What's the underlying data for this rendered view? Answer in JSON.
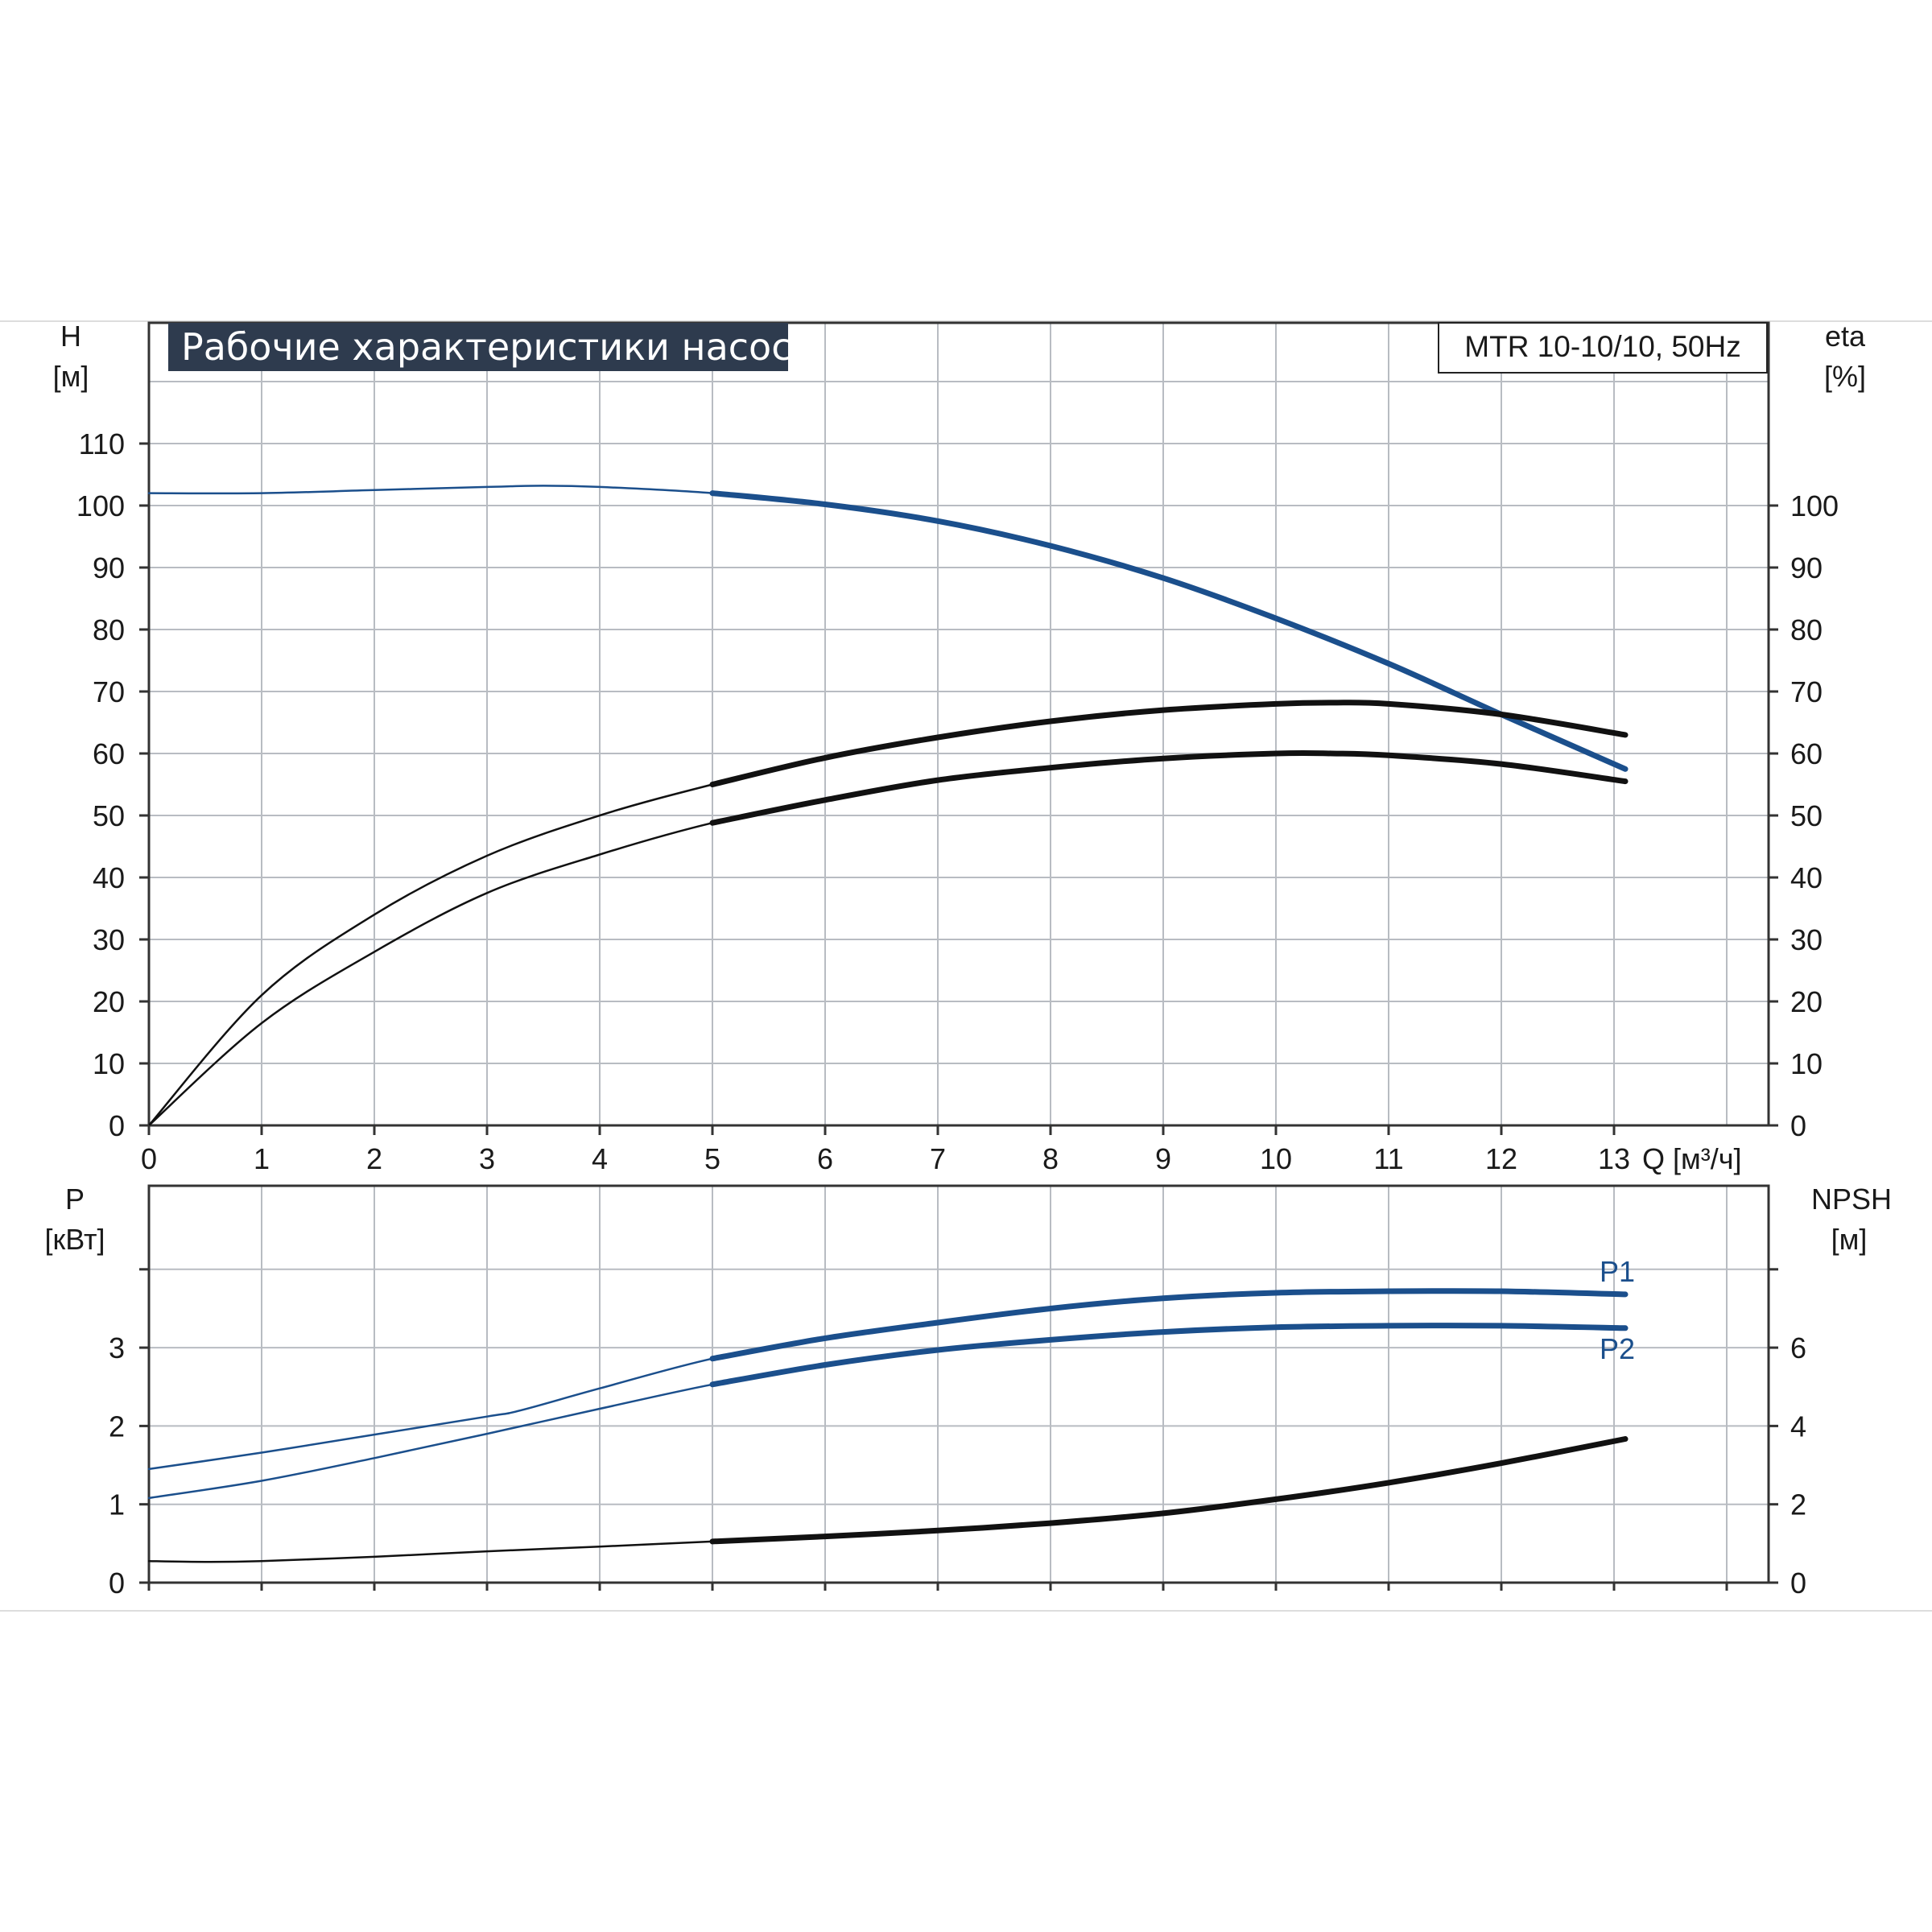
{
  "colors": {
    "blue": "#1b4f8c",
    "black": "#111111",
    "grid": "#b8bcc2",
    "title_bg": "#2e3b4e",
    "frame_line": "#dddddd"
  },
  "chart_data": [
    {
      "type": "line",
      "title": "Рабочие характеристики насоса",
      "model": "MTR 10-10/10, 50Hz",
      "xlabel": "Q [м³/ч]",
      "xlim": [
        0,
        14
      ],
      "xticks": [
        "0",
        "1",
        "2",
        "3",
        "4",
        "5",
        "6",
        "7",
        "8",
        "9",
        "10",
        "11",
        "12",
        "13"
      ],
      "ylabel_left": {
        "name": "H",
        "unit": "[м]"
      },
      "ylabel_right": {
        "name": "eta",
        "unit": "[%]"
      },
      "ylim": [
        0,
        120
      ],
      "yticks_left": [
        "0",
        "10",
        "20",
        "30",
        "40",
        "50",
        "60",
        "70",
        "80",
        "90",
        "100",
        "110"
      ],
      "yticks_right": [
        "0",
        "10",
        "20",
        "30",
        "40",
        "50",
        "60",
        "70",
        "80",
        "90",
        "100"
      ],
      "grid": true,
      "series": [
        {
          "color": "blue",
          "axis": "left",
          "x": [
            0,
            1,
            2,
            3,
            3.5,
            4,
            5,
            6,
            7,
            8,
            9,
            10,
            11,
            12,
            13.1
          ],
          "values": [
            102,
            102,
            102.5,
            103,
            103.2,
            103,
            102,
            100.2,
            97.5,
            93.5,
            88.3,
            81.8,
            74.5,
            66.3,
            57.5
          ]
        },
        {
          "color": "black",
          "axis": "right",
          "x": [
            0,
            1,
            2,
            3,
            4,
            5,
            6,
            7,
            8,
            9,
            10,
            10.5,
            11,
            12,
            13.1
          ],
          "values": [
            0,
            21,
            34,
            43.5,
            50,
            55,
            59.3,
            62.6,
            65.2,
            67,
            68,
            68.2,
            68,
            66.3,
            63
          ]
        },
        {
          "color": "black",
          "axis": "right",
          "x": [
            0,
            1,
            2,
            3,
            4,
            5,
            6,
            7,
            8,
            9,
            10,
            10.5,
            11,
            12,
            13.1
          ],
          "values": [
            0,
            16.5,
            28,
            37.5,
            43.7,
            48.8,
            52.5,
            55.7,
            57.7,
            59.2,
            60,
            60,
            59.7,
            58.3,
            55.5
          ]
        }
      ]
    },
    {
      "type": "line",
      "ylabel_left": {
        "name": "P",
        "unit": "[кВт]"
      },
      "ylabel_right": {
        "name": "NPSH",
        "unit": "[м]"
      },
      "xlim": [
        0,
        14
      ],
      "ylim_left": [
        0,
        4.5
      ],
      "ylim_right": [
        0,
        9
      ],
      "yticks_left": [
        "0",
        "1",
        "2",
        "3"
      ],
      "yticks_right": [
        "0",
        "2",
        "4",
        "6"
      ],
      "grid": true,
      "series": [
        {
          "name": "P1",
          "color": "blue",
          "axis": "left",
          "x": [
            0,
            1,
            2,
            3,
            3.3,
            4,
            5,
            6,
            7,
            8,
            9,
            10,
            11,
            12,
            13.1
          ],
          "values": [
            1.45,
            1.66,
            1.89,
            2.12,
            2.2,
            2.48,
            2.86,
            3.12,
            3.32,
            3.5,
            3.63,
            3.7,
            3.72,
            3.72,
            3.68
          ]
        },
        {
          "name": "P2",
          "color": "blue",
          "axis": "left",
          "x": [
            0,
            1,
            2,
            3,
            4,
            5,
            6,
            7,
            8,
            9,
            10,
            11,
            12,
            13.1
          ],
          "values": [
            1.08,
            1.3,
            1.59,
            1.9,
            2.22,
            2.53,
            2.78,
            2.97,
            3.1,
            3.2,
            3.26,
            3.28,
            3.28,
            3.25
          ]
        },
        {
          "color": "black",
          "axis": "right",
          "x": [
            0,
            0.5,
            1,
            2,
            3,
            4,
            5,
            6,
            7,
            8,
            9,
            10,
            11,
            12,
            13.1
          ],
          "values": [
            0.55,
            0.53,
            0.55,
            0.66,
            0.8,
            0.92,
            1.05,
            1.18,
            1.33,
            1.52,
            1.77,
            2.13,
            2.55,
            3.05,
            3.67
          ]
        }
      ]
    }
  ]
}
